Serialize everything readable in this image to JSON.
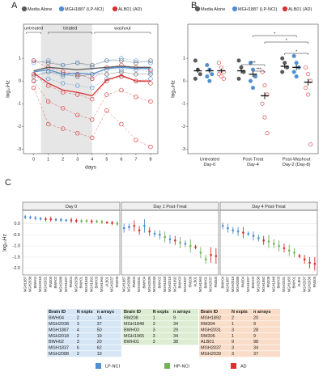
{
  "chart_data": [
    {
      "type": "line_scatter",
      "panel": "A",
      "x": [
        0,
        1,
        2,
        3,
        4,
        5,
        6,
        7,
        8
      ],
      "xlim": [
        -0.7,
        8.5
      ],
      "xticks": [
        0,
        1,
        2,
        3,
        4,
        5,
        6,
        7,
        8
      ],
      "ylim": [
        -3.2,
        2.5
      ],
      "yticks": [
        -3,
        -2,
        -1,
        0,
        1
      ],
      "xlabel": "days",
      "ylabel": "log₁₀Hz",
      "annotations": [
        "untreated",
        "treated",
        "washout"
      ],
      "series": [
        {
          "name": "Media Alone",
          "color": "#5a5a5a",
          "values": [
            0.45,
            0.6,
            0.55,
            0.5,
            0.55,
            0.6,
            0.65,
            0.6,
            0.6
          ],
          "points": [
            [
              0.9,
              0.2
            ],
            [
              0.8,
              0.4
            ],
            [
              0.7,
              0.3
            ],
            [
              0.8,
              0.2
            ],
            [
              0.7,
              0.3
            ],
            [
              0.9,
              0.3
            ],
            [
              0.9,
              0.4
            ],
            [
              0.8,
              0.3
            ],
            [
              0.9,
              0.3
            ]
          ]
        },
        {
          "name": "MGH1887 (LP-NCI)",
          "color": "#4f8fcf",
          "values": [
            0.4,
            0.5,
            0.3,
            0.35,
            0.3,
            0.55,
            0.6,
            0.55,
            0.55
          ],
          "points": [
            [
              0.8,
              0.3,
              0.0
            ],
            [
              0.9,
              0.4,
              0.1
            ],
            [
              0.7,
              0.2,
              -0.1
            ],
            [
              0.8,
              0.3,
              -0.2
            ],
            [
              0.6,
              0.1,
              -0.3
            ],
            [
              0.9,
              0.5,
              0.1
            ],
            [
              1.0,
              0.5,
              0.2
            ],
            [
              0.9,
              0.5,
              0.0
            ],
            [
              0.8,
              0.4,
              0.1
            ]
          ]
        },
        {
          "name": "ALB01 (AD)",
          "color": "#d93030",
          "values": [
            0.35,
            -0.1,
            -0.4,
            -0.5,
            -0.65,
            0.05,
            0.25,
            0.0,
            0.0
          ],
          "points": [
            [
              0.9,
              0.3,
              0.0,
              -0.3
            ],
            [
              0.6,
              -0.2,
              -0.9,
              -1.9
            ],
            [
              0.4,
              -0.5,
              -1.2,
              -2.1
            ],
            [
              0.3,
              -0.6,
              -1.5,
              -2.3
            ],
            [
              0.1,
              -0.8,
              -1.7,
              -2.5
            ],
            [
              0.6,
              0.0,
              -0.6,
              -1.3
            ],
            [
              0.7,
              0.2,
              -0.4,
              -1.9
            ],
            [
              0.6,
              0.0,
              -0.7,
              -2.6
            ],
            [
              0.5,
              -0.1,
              -0.9,
              -2.9
            ]
          ]
        }
      ]
    },
    {
      "type": "dot_mean",
      "panel": "B",
      "categories": [
        [
          "Untreated",
          "Day-0"
        ],
        [
          "Post-Treat",
          "Day-4"
        ],
        [
          "Post-Washout",
          "Day-2 (Day-8)"
        ]
      ],
      "ylim": [
        -3.2,
        2.5
      ],
      "yticks": [
        -3,
        -2,
        -1,
        0,
        1
      ],
      "ylabel": "log₁₀Hz",
      "significance": [
        "***",
        "***",
        "*",
        "*",
        "*"
      ],
      "series": [
        {
          "name": "Media Alone",
          "color": "#5a5a5a",
          "filled": true,
          "values": [
            0.45,
            0.45,
            0.65
          ],
          "errors": [
            0.1,
            0.12,
            0.1
          ],
          "points": [
            [
              0.9,
              0.5,
              0.3,
              0.1
            ],
            [
              0.9,
              0.6,
              0.4,
              0.1
            ],
            [
              1.0,
              0.8,
              0.6,
              0.4
            ]
          ]
        },
        {
          "name": "MGH1887 (LP-NCI)",
          "color": "#4f8fcf",
          "filled": true,
          "values": [
            0.45,
            0.3,
            0.6
          ],
          "errors": [
            0.1,
            0.12,
            0.12
          ],
          "points": [
            [
              0.7,
              0.5,
              0.3,
              0.2,
              0.0
            ],
            [
              0.8,
              0.5,
              0.2,
              0.0,
              -0.3
            ],
            [
              1.1,
              0.8,
              0.6,
              0.4,
              0.2
            ]
          ]
        },
        {
          "name": "ALB01 (AD)",
          "color": "#d93030",
          "filled": false,
          "values": [
            0.45,
            -0.65,
            -0.05
          ],
          "errors": [
            0.1,
            0.15,
            0.15
          ],
          "points": [
            [
              0.8,
              0.6,
              0.4,
              0.3,
              0.2,
              0.1
            ],
            [
              0.4,
              -0.2,
              -0.6,
              -1.0,
              -1.6,
              -2.3
            ],
            [
              0.6,
              0.3,
              0.0,
              -0.3,
              -0.6,
              -2.8
            ]
          ]
        }
      ]
    },
    {
      "type": "errorbar",
      "panel": "C",
      "title": "Day 0",
      "ylabel": "log₁₀Hz",
      "ylim": [
        -2.3,
        0.6
      ],
      "yticks": [
        {
          "value": -2,
          "label": "-2.0"
        },
        {
          "value": -1.5,
          "label": "-1.5"
        },
        {
          "value": -1,
          "label": "-1.0"
        },
        {
          "value": -0.5,
          "label": "-0.5"
        },
        {
          "value": 0,
          "label": "0.0"
        }
      ],
      "categories": [
        "MGH1887",
        "MGH2038",
        "BWH04",
        "MGH2018",
        "MGH2031",
        "RM305",
        "BWH02",
        "MGH2088",
        "MGH1837",
        "RM304",
        "MGH2039",
        "BWH01",
        "MGH1848",
        "MGH1892",
        "BWH03",
        "MGH1965",
        "ALB01",
        "MGH2037",
        "RM208"
      ],
      "values": [
        0.3,
        0.28,
        0.25,
        0.22,
        0.2,
        0.2,
        0.18,
        0.17,
        0.15,
        0.15,
        0.13,
        0.12,
        0.12,
        0.1,
        0.1,
        0.08,
        0.05,
        0.03,
        0.0
      ],
      "errors": [
        0.1,
        0.08,
        0.1,
        0.08,
        0.1,
        0.12,
        0.08,
        0.1,
        0.06,
        0.12,
        0.1,
        0.1,
        0.08,
        0.1,
        0.08,
        0.1,
        0.05,
        0.1,
        0.12
      ],
      "colors": [
        "#4f8fcf",
        "#4f8fcf",
        "#4f8fcf",
        "#4f8fcf",
        "#d93030",
        "#d93030",
        "#4f8fcf",
        "#4f8fcf",
        "#4f8fcf",
        "#d93030",
        "#d93030",
        "#72b35a",
        "#72b35a",
        "#d93030",
        "#72b35a",
        "#72b35a",
        "#d93030",
        "#d93030",
        "#72b35a"
      ]
    },
    {
      "type": "errorbar",
      "title": "Day 1 Post-Treat",
      "ylim": [
        -2.3,
        0.6
      ],
      "categories": [
        "MGH1887",
        "MGH2088",
        "RM304",
        "MGH2031",
        "BWH04",
        "MGH2039",
        "MGH2038",
        "BWH02",
        "MGH1848",
        "MGH2018",
        "MGH1892",
        "BWH03",
        "MGH1837",
        "RM208",
        "ALB01",
        "MGH1965",
        "BWH01",
        "MGH2037",
        "RM305"
      ],
      "values": [
        -0.2,
        -0.15,
        -0.1,
        -0.3,
        -0.1,
        -0.35,
        -0.45,
        -0.5,
        -0.6,
        -0.7,
        -0.75,
        -0.85,
        -0.9,
        -1.0,
        -1.05,
        -1.3,
        -1.6,
        -1.4,
        -1.45
      ],
      "errors": [
        0.2,
        0.15,
        0.25,
        0.2,
        0.3,
        0.2,
        0.15,
        0.2,
        0.25,
        0.2,
        0.2,
        0.25,
        0.15,
        0.3,
        0.1,
        0.25,
        0.2,
        0.35,
        0.35
      ],
      "colors": [
        "#4f8fcf",
        "#4f8fcf",
        "#d93030",
        "#d93030",
        "#4f8fcf",
        "#d93030",
        "#4f8fcf",
        "#4f8fcf",
        "#72b35a",
        "#4f8fcf",
        "#d93030",
        "#72b35a",
        "#4f8fcf",
        "#72b35a",
        "#d93030",
        "#72b35a",
        "#72b35a",
        "#d93030",
        "#d93030"
      ]
    },
    {
      "type": "errorbar",
      "title": "Day 4 Post-Treat",
      "ylim": [
        -2.3,
        0.6
      ],
      "categories": [
        "BWH04",
        "MGH1887",
        "MGH2018",
        "MGH2088",
        "RM304",
        "MGH1837",
        "BWH02",
        "MGH2038",
        "MGH1892",
        "RM208",
        "MGH1848",
        "BWH03",
        "MGH2031",
        "MGH1965",
        "BWH01",
        "ALB01",
        "MGH2037",
        "MGH2039",
        "RM305"
      ],
      "values": [
        -0.1,
        -0.2,
        -0.3,
        -0.35,
        -0.4,
        -0.45,
        -0.55,
        -0.65,
        -0.75,
        -0.8,
        -0.9,
        -1.0,
        -1.1,
        -1.2,
        -1.3,
        -1.45,
        -1.6,
        -1.75,
        -1.8
      ],
      "errors": [
        0.15,
        0.2,
        0.15,
        0.2,
        0.25,
        0.1,
        0.2,
        0.15,
        0.2,
        0.3,
        0.2,
        0.25,
        0.2,
        0.25,
        0.2,
        0.1,
        0.2,
        0.25,
        0.3
      ],
      "colors": [
        "#4f8fcf",
        "#4f8fcf",
        "#4f8fcf",
        "#4f8fcf",
        "#d93030",
        "#4f8fcf",
        "#4f8fcf",
        "#4f8fcf",
        "#d93030",
        "#72b35a",
        "#72b35a",
        "#72b35a",
        "#d93030",
        "#72b35a",
        "#72b35a",
        "#d93030",
        "#d93030",
        "#d93030",
        "#d93030"
      ]
    }
  ],
  "tables": [
    {
      "color": "#d6e6f5",
      "header": [
        "Brain ID",
        "N expts",
        "n arrays"
      ],
      "rows": [
        [
          "BWH04",
          2,
          14
        ],
        [
          "MGH2038",
          3,
          37
        ],
        [
          "MGH1887",
          4,
          50
        ],
        [
          "MGH2018",
          2,
          19
        ],
        [
          "BWH02",
          3,
          20
        ],
        [
          "MGH1837",
          6,
          62
        ],
        [
          "MGH2088",
          2,
          19
        ]
      ]
    },
    {
      "color": "#dcedd3",
      "header": [
        "Brain ID",
        "N expts",
        "n arrays"
      ],
      "rows": [
        [
          "RM208",
          1,
          9
        ],
        [
          "MGH1848",
          3,
          34
        ],
        [
          "BWH03",
          3,
          29
        ],
        [
          "MGH1965",
          3,
          34
        ],
        [
          "BWH01",
          3,
          38
        ]
      ]
    },
    {
      "color": "#f9ddc8",
      "header": [
        "Brain ID",
        "N expts",
        "n arrays"
      ],
      "rows": [
        [
          "MGH1892",
          2,
          20
        ],
        [
          "RM304",
          1,
          9
        ],
        [
          "MGH2031",
          3,
          28
        ],
        [
          "RM305",
          1,
          9
        ],
        [
          "ALB01",
          9,
          98
        ],
        [
          "MGH2037",
          3,
          34
        ],
        [
          "MGH2039",
          3,
          37
        ]
      ]
    }
  ],
  "legend": [
    {
      "name": "LP-NCI",
      "color": "#4f8fcf"
    },
    {
      "name": "HP-NCI",
      "color": "#72b35a"
    },
    {
      "name": "AD",
      "color": "#d93030"
    }
  ]
}
